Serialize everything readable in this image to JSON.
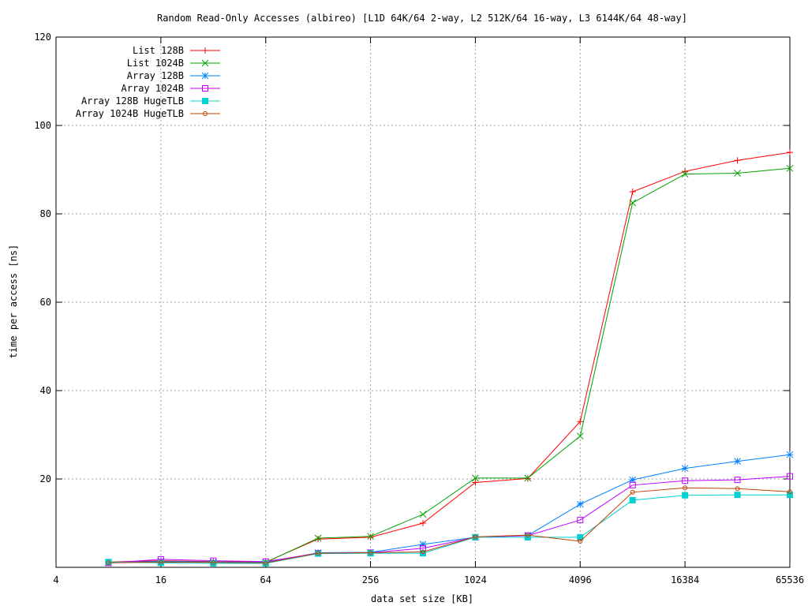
{
  "chart_data": {
    "type": "line",
    "title": "Random Read-Only Accesses (albireo) [L1D 64K/64 2-way, L2 512K/64 16-way, L3 6144K/64 48-way]",
    "xlabel": "data set size [KB]",
    "ylabel": "time per access [ns]",
    "xscale": "log2",
    "xlim": [
      4,
      65536
    ],
    "ylim": [
      0,
      120
    ],
    "xticks": [
      4,
      16,
      64,
      256,
      1024,
      4096,
      16384,
      65536
    ],
    "yticks": [
      20,
      40,
      60,
      80,
      100,
      120
    ],
    "grid": true,
    "legend_position": "top-left",
    "x": [
      8,
      16,
      32,
      64,
      128,
      256,
      512,
      1024,
      2048,
      4096,
      8192,
      16384,
      32768,
      65536
    ],
    "series": [
      {
        "name": "List 128B",
        "color": "#ff0000",
        "marker": "plus",
        "values": [
          1.2,
          1.5,
          1.3,
          1.2,
          6.4,
          6.8,
          10.0,
          19.2,
          20.1,
          33.0,
          85.0,
          89.6,
          92.1,
          93.9
        ]
      },
      {
        "name": "List 1024B",
        "color": "#00a000",
        "marker": "cross",
        "values": [
          1.1,
          1.2,
          1.2,
          1.1,
          6.6,
          7.0,
          12.0,
          20.2,
          20.2,
          29.7,
          82.5,
          89.0,
          89.2,
          90.3
        ]
      },
      {
        "name": "Array 128B",
        "color": "#0080ff",
        "marker": "star",
        "values": [
          1.0,
          1.4,
          1.2,
          1.1,
          3.3,
          3.4,
          5.2,
          6.8,
          7.2,
          14.3,
          19.8,
          22.4,
          24.0,
          25.5
        ]
      },
      {
        "name": "Array 1024B",
        "color": "#c000ff",
        "marker": "square",
        "values": [
          1.0,
          1.8,
          1.5,
          1.3,
          3.2,
          3.3,
          4.3,
          6.8,
          7.2,
          10.7,
          18.6,
          19.6,
          19.8,
          20.6
        ]
      },
      {
        "name": "Array 128B HugeTLB",
        "color": "#00d0d0",
        "marker": "filled-square",
        "values": [
          1.2,
          1.0,
          0.9,
          0.9,
          3.1,
          3.2,
          3.2,
          6.8,
          6.8,
          6.8,
          15.2,
          16.3,
          16.4,
          16.4
        ]
      },
      {
        "name": "Array 1024B HugeTLB",
        "color": "#c04000",
        "marker": "circle",
        "values": [
          1.0,
          1.2,
          1.1,
          1.0,
          3.2,
          3.3,
          3.5,
          6.9,
          7.3,
          5.9,
          17.0,
          18.0,
          17.8,
          17.1
        ]
      }
    ]
  }
}
